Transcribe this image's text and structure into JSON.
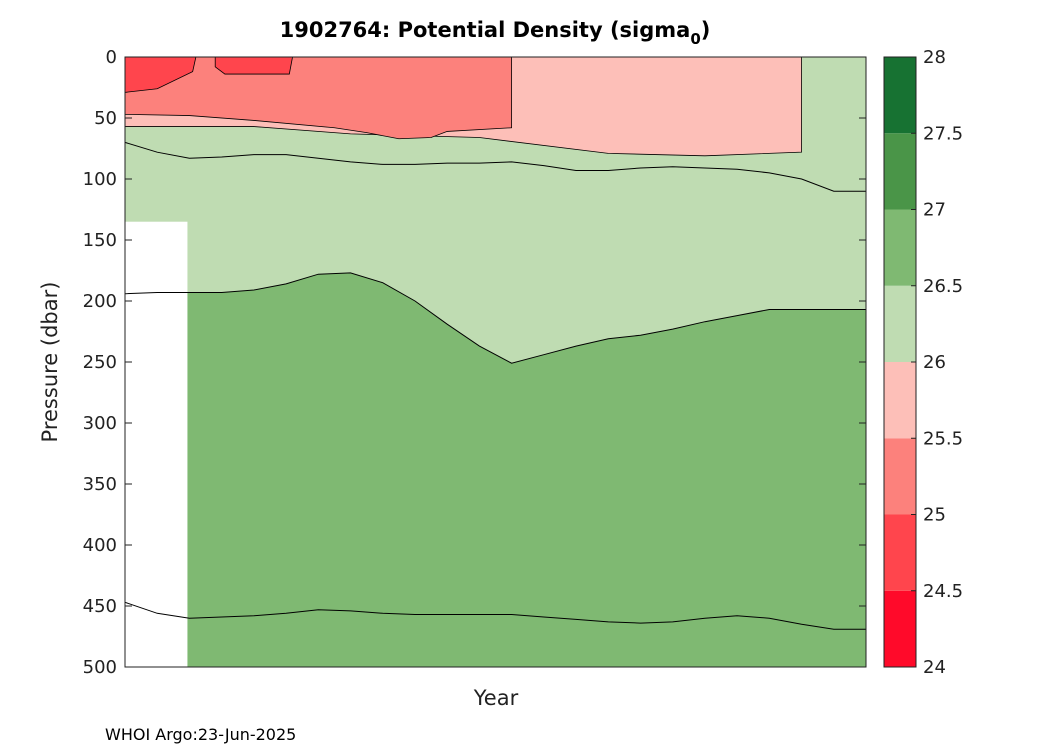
{
  "chart_data": {
    "type": "heatmap",
    "title": {
      "main": "1902764: Potential Density (sigma",
      "subscript": "0",
      "close": ")"
    },
    "xlabel": "Year",
    "ylabel": "Pressure (dbar)",
    "yaxis": {
      "range": [
        0,
        500
      ],
      "reversed": true,
      "ticks": [
        0,
        50,
        100,
        150,
        200,
        250,
        300,
        350,
        400,
        450,
        500
      ],
      "tick_labels": [
        "0",
        "50",
        "100",
        "150",
        "200",
        "250",
        "300",
        "350",
        "400",
        "450",
        "500"
      ]
    },
    "colorbar": {
      "range": [
        24,
        28
      ],
      "levels": [
        24,
        24.5,
        25,
        25.5,
        26,
        26.5,
        27,
        27.5,
        28
      ],
      "tick_labels": [
        "24",
        "24.5",
        "25",
        "25.5",
        "26",
        "26.5",
        "27",
        "27.5",
        "28"
      ],
      "colors": [
        "#ff0a2a",
        "#ff454d",
        "#fc817c",
        "#fdbfb8",
        "#bfdcb2",
        "#7fb972",
        "#4a9548",
        "#177232"
      ]
    },
    "contours": [
      {
        "level": 26.0,
        "name": "26.0 isopycnal",
        "pressure": [
          70,
          78,
          83,
          82,
          80,
          80,
          83,
          86,
          88,
          88,
          87,
          87,
          86,
          89,
          93,
          93,
          91,
          90,
          91,
          92,
          95,
          100,
          110,
          110
        ]
      },
      {
        "level": 26.5,
        "name": "26.5 isopycnal",
        "pressure": [
          194,
          193,
          193,
          193,
          191,
          186,
          178,
          177,
          185,
          200,
          219,
          237,
          251,
          244,
          237,
          231,
          228,
          223,
          217,
          212,
          207,
          207,
          207,
          207
        ]
      },
      {
        "level": 27.0,
        "name": "27.0 isopycnal",
        "pressure": [
          447,
          456,
          460,
          459,
          458,
          456,
          453,
          454,
          456,
          457,
          457,
          457,
          457,
          459,
          461,
          463,
          464,
          463,
          460,
          458,
          460,
          465,
          469,
          469
        ]
      }
    ],
    "no_data": {
      "profiles": [
        0,
        2
      ],
      "pressure": [
        135,
        500
      ]
    },
    "footer": "WHOI Argo:23-Jun-2025"
  }
}
